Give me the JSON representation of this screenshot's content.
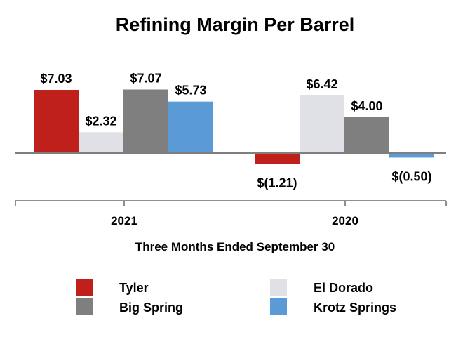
{
  "chart_data": {
    "type": "bar",
    "title": "Refining Margin Per Barrel",
    "xlabel": "Three Months Ended September 30",
    "ylabel": "",
    "categories": [
      "2021",
      "2020"
    ],
    "series": [
      {
        "name": "Tyler",
        "color": "#c0201b",
        "values": [
          7.03,
          -1.21
        ],
        "labels": [
          "$7.03",
          "$(1.21)"
        ]
      },
      {
        "name": "El Dorado",
        "color": "#e0e1e6",
        "values": [
          2.32,
          6.42
        ],
        "labels": [
          "$2.32",
          "$6.42"
        ]
      },
      {
        "name": "Big Spring",
        "color": "#7f7f7f",
        "values": [
          7.07,
          4.0
        ],
        "labels": [
          "$7.07",
          "$4.00"
        ]
      },
      {
        "name": "Krotz Springs",
        "color": "#5b9bd5",
        "values": [
          5.73,
          -0.5
        ],
        "labels": [
          "$5.73",
          "$(0.50)"
        ]
      }
    ],
    "ylim": [
      -7.5,
      9.5
    ],
    "grid": false,
    "legend_position": "bottom"
  }
}
